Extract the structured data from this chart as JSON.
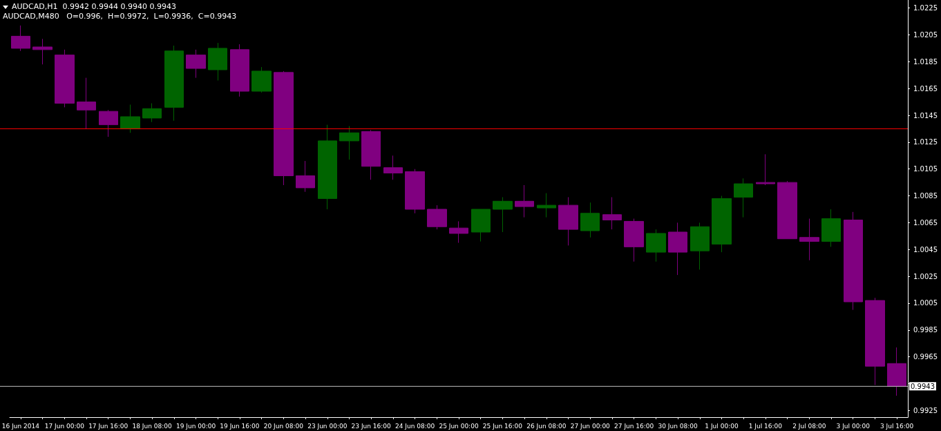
{
  "chart_data": {
    "type": "candlestick",
    "title": "AUDCAD,H1  0.9942 0.9944 0.9940 0.9943",
    "subtitle": "AUDCAD,M480   O=0.996,  H=0.9972,  L=0.9936,  C=0.9943",
    "categories": [
      "16 Jun 2014",
      null,
      "17 Jun 00:00",
      null,
      "17 Jun 16:00",
      null,
      "18 Jun 08:00",
      null,
      "19 Jun 00:00",
      null,
      "19 Jun 16:00",
      null,
      "20 Jun 08:00",
      null,
      "23 Jun 00:00",
      null,
      "23 Jun 16:00",
      null,
      "24 Jun 08:00",
      null,
      "25 Jun 00:00",
      null,
      "25 Jun 16:00",
      null,
      "26 Jun 08:00",
      null,
      "27 Jun 00:00",
      null,
      "27 Jun 16:00",
      null,
      "30 Jun 08:00",
      null,
      "1 Jul 00:00",
      null,
      "1 Jul 16:00",
      null,
      "2 Jul 08:00",
      null,
      "3 Jul 00:00",
      null,
      "3 Jul 16:00"
    ],
    "ohlc": [
      [
        1.0204,
        1.0212,
        1.0193,
        1.0195
      ],
      [
        1.0196,
        1.0202,
        1.0183,
        1.0194
      ],
      [
        1.019,
        1.0194,
        1.0151,
        1.0154
      ],
      [
        1.0155,
        1.0173,
        1.0135,
        1.0149
      ],
      [
        1.0148,
        1.0149,
        1.0129,
        1.0138
      ],
      [
        1.0135,
        1.0153,
        1.0132,
        1.0144
      ],
      [
        1.0143,
        1.0154,
        1.014,
        1.015
      ],
      [
        1.0151,
        1.0197,
        1.0141,
        1.0193
      ],
      [
        1.019,
        1.0194,
        1.0173,
        1.018
      ],
      [
        1.0179,
        1.0199,
        1.0171,
        1.0195
      ],
      [
        1.0194,
        1.0198,
        1.0159,
        1.0163
      ],
      [
        1.0163,
        1.0181,
        1.0162,
        1.0178
      ],
      [
        1.0177,
        1.0178,
        1.0093,
        1.01
      ],
      [
        1.01,
        1.0111,
        1.0088,
        1.0091
      ],
      [
        1.0083,
        1.0138,
        1.0075,
        1.0126
      ],
      [
        1.0126,
        1.0137,
        1.0112,
        1.0132
      ],
      [
        1.0133,
        1.0134,
        1.0097,
        1.0107
      ],
      [
        1.0106,
        1.0115,
        1.0097,
        1.0102
      ],
      [
        1.0103,
        1.0105,
        1.0072,
        1.0075
      ],
      [
        1.0075,
        1.0078,
        1.006,
        1.0062
      ],
      [
        1.0061,
        1.0066,
        1.005,
        1.0057
      ],
      [
        1.0058,
        1.0075,
        1.0051,
        1.0075
      ],
      [
        1.0075,
        1.0084,
        1.0058,
        1.0081
      ],
      [
        1.0081,
        1.0093,
        1.0069,
        1.0077
      ],
      [
        1.0076,
        1.0087,
        1.0069,
        1.0078
      ],
      [
        1.0078,
        1.0084,
        1.0048,
        1.006
      ],
      [
        1.0059,
        1.008,
        1.0054,
        1.0072
      ],
      [
        1.0071,
        1.0084,
        1.006,
        1.0067
      ],
      [
        1.0066,
        1.0068,
        1.0036,
        1.0047
      ],
      [
        1.0043,
        1.006,
        1.0036,
        1.0057
      ],
      [
        1.0058,
        1.0065,
        1.0026,
        1.0043
      ],
      [
        1.0044,
        1.0065,
        1.003,
        1.0062
      ],
      [
        1.0049,
        1.0085,
        1.0043,
        1.0083
      ],
      [
        1.0084,
        1.0098,
        1.0069,
        1.0094
      ],
      [
        1.0095,
        1.0116,
        1.0093,
        1.0094
      ],
      [
        1.0095,
        1.0096,
        1.0053,
        1.0053
      ],
      [
        1.0054,
        1.0068,
        1.0037,
        1.0051
      ],
      [
        1.0051,
        1.0075,
        1.0047,
        1.0068
      ],
      [
        1.0067,
        1.0073,
        1.0,
        1.0006
      ],
      [
        1.0007,
        1.0009,
        0.9944,
        0.9958
      ],
      [
        0.996,
        0.9972,
        0.9936,
        0.9943
      ]
    ],
    "colors": [
      "#800080",
      "#800080",
      "#800080",
      "#800080",
      "#800080",
      "#006400",
      "#006400",
      "#006400",
      "#800080",
      "#006400",
      "#800080",
      "#006400",
      "#800080",
      "#800080",
      "#006400",
      "#006400",
      "#800080",
      "#800080",
      "#800080",
      "#800080",
      "#800080",
      "#006400",
      "#006400",
      "#800080",
      "#006400",
      "#800080",
      "#006400",
      "#800080",
      "#800080",
      "#006400",
      "#800080",
      "#006400",
      "#006400",
      "#006400",
      "#800080",
      "#800080",
      "#800080",
      "#006400",
      "#800080",
      "#800080",
      "#800080"
    ],
    "ylim": [
      0.992,
      1.0231
    ],
    "yticks": [
      0.9925,
      {
        "value": 0.9945,
        "label": null
      },
      0.9965,
      0.9985,
      1.0005,
      1.0025,
      1.0045,
      1.0065,
      1.0085,
      1.0105,
      1.0125,
      1.0145,
      1.0165,
      1.0185,
      1.0205,
      1.0225
    ],
    "ref_lines": [
      {
        "axis": "y",
        "value": 1.0135,
        "color": "#ff0000"
      },
      {
        "axis": "y",
        "value": 0.9943,
        "label": "0.9943",
        "color": "#c0c0c0"
      }
    ]
  }
}
